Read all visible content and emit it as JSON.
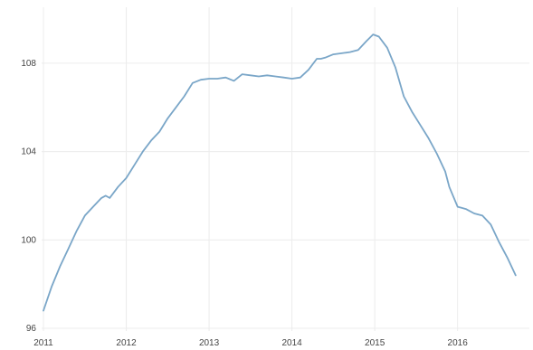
{
  "colors": {
    "series": "#7aa6c8",
    "grid": "#ececec",
    "text": "#444444",
    "background": "#ffffff"
  },
  "chart_data": {
    "type": "line",
    "title": "",
    "xlabel": "",
    "ylabel": "",
    "grid": true,
    "legend": "none",
    "xlim": [
      2011,
      2016.8
    ],
    "ylim": [
      96,
      110
    ],
    "x_ticks": [
      2011,
      2012,
      2013,
      2014,
      2015,
      2016
    ],
    "x_tick_labels": [
      "2011",
      "2012",
      "2013",
      "2014",
      "2015",
      "2016"
    ],
    "y_ticks": [
      96,
      100,
      104,
      108
    ],
    "y_tick_labels": [
      "96",
      "100",
      "104",
      "108"
    ],
    "series": [
      {
        "x": [
          2011.0,
          2011.1,
          2011.2,
          2011.3,
          2011.4,
          2011.5,
          2011.6,
          2011.7,
          2011.75,
          2011.8,
          2011.9,
          2012.0,
          2012.1,
          2012.2,
          2012.3,
          2012.4,
          2012.5,
          2012.6,
          2012.7,
          2012.8,
          2012.9,
          2013.0,
          2013.1,
          2013.2,
          2013.3,
          2013.4,
          2013.5,
          2013.6,
          2013.7,
          2013.8,
          2013.9,
          2014.0,
          2014.1,
          2014.2,
          2014.3,
          2014.35,
          2014.4,
          2014.5,
          2014.6,
          2014.7,
          2014.8,
          2014.9,
          2014.98,
          2015.05,
          2015.15,
          2015.25,
          2015.35,
          2015.45,
          2015.55,
          2015.65,
          2015.75,
          2015.85,
          2015.9,
          2016.0,
          2016.1,
          2016.2,
          2016.3,
          2016.4,
          2016.5,
          2016.6,
          2016.7
        ],
        "values": [
          96.8,
          97.9,
          98.8,
          99.6,
          100.4,
          101.1,
          101.5,
          101.9,
          102.0,
          101.9,
          102.4,
          102.8,
          103.4,
          104.0,
          104.5,
          104.9,
          105.5,
          106.0,
          106.5,
          107.1,
          107.25,
          107.3,
          107.3,
          107.35,
          107.2,
          107.5,
          107.45,
          107.4,
          107.45,
          107.4,
          107.35,
          107.3,
          107.35,
          107.7,
          108.2,
          108.2,
          108.25,
          108.4,
          108.45,
          108.5,
          108.6,
          109.0,
          109.3,
          109.2,
          108.7,
          107.8,
          106.5,
          105.8,
          105.2,
          104.6,
          103.9,
          103.1,
          102.4,
          101.5,
          101.4,
          101.2,
          101.1,
          100.7,
          99.9,
          99.2,
          98.4
        ]
      }
    ]
  }
}
